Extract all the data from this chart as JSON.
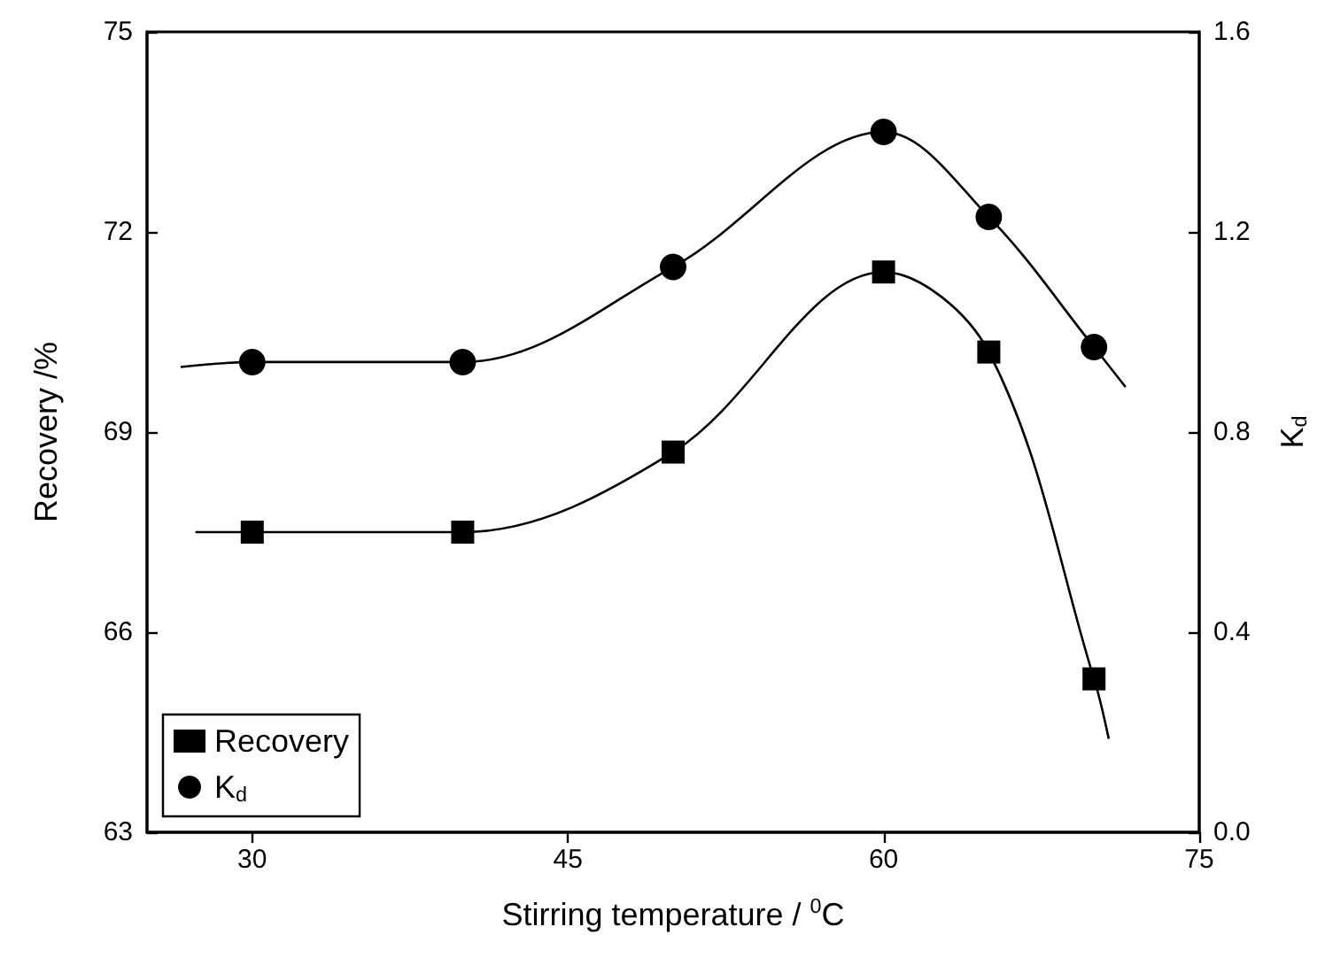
{
  "chart_data": {
    "type": "scatter",
    "xlabel": "Stirring temperature / $^{0}$C",
    "ylabel": "Recovery /%",
    "y2label": "K$_{d}$",
    "xlim": [
      25,
      75
    ],
    "xticks": [
      30,
      45,
      60,
      75
    ],
    "ylim": [
      63,
      75
    ],
    "yticks": [
      63,
      66,
      69,
      72,
      75
    ],
    "y2lim": [
      0,
      1.6
    ],
    "y2ticks": [
      {
        "value": 0,
        "label": "0.0"
      },
      {
        "value": 0.4,
        "label": "0.4"
      },
      {
        "value": 0.8,
        "label": "0.8"
      },
      {
        "value": 1.2,
        "label": "1.2"
      },
      {
        "value": 1.6,
        "label": "1.6"
      }
    ],
    "grid": false,
    "legend": "bottom left",
    "series": [
      {
        "name": "Recovery",
        "marker": "square",
        "color": "#000000",
        "x": [
          30,
          40,
          50,
          60,
          65,
          70
        ],
        "values": [
          67.5,
          67.5,
          68.7,
          71.4,
          70.2,
          65.3
        ]
      },
      {
        "name": "K$_{d}$",
        "marker": "circle",
        "color": "#000000",
        "axis": "y2",
        "x": [
          30,
          40,
          50,
          60,
          65,
          70
        ],
        "values": [
          0.94,
          0.94,
          1.13,
          1.4,
          1.23,
          0.97
        ]
      },
      {
        "type": "line",
        "marker": "none",
        "color": "#000000",
        "x": [
          27.3,
          30,
          40,
          50,
          60,
          65,
          70,
          70.7
        ],
        "values": [
          67.5,
          67.5,
          67.5,
          68.7,
          71.4,
          70.2,
          65.3,
          64.4
        ]
      },
      {
        "type": "line",
        "marker": "none",
        "color": "#000000",
        "axis": "y2",
        "x": [
          26.6,
          30,
          40,
          50,
          60,
          65,
          70,
          71.5
        ],
        "values": [
          0.93,
          0.94,
          0.94,
          1.13,
          1.4,
          1.23,
          0.97,
          0.89
        ]
      }
    ]
  }
}
